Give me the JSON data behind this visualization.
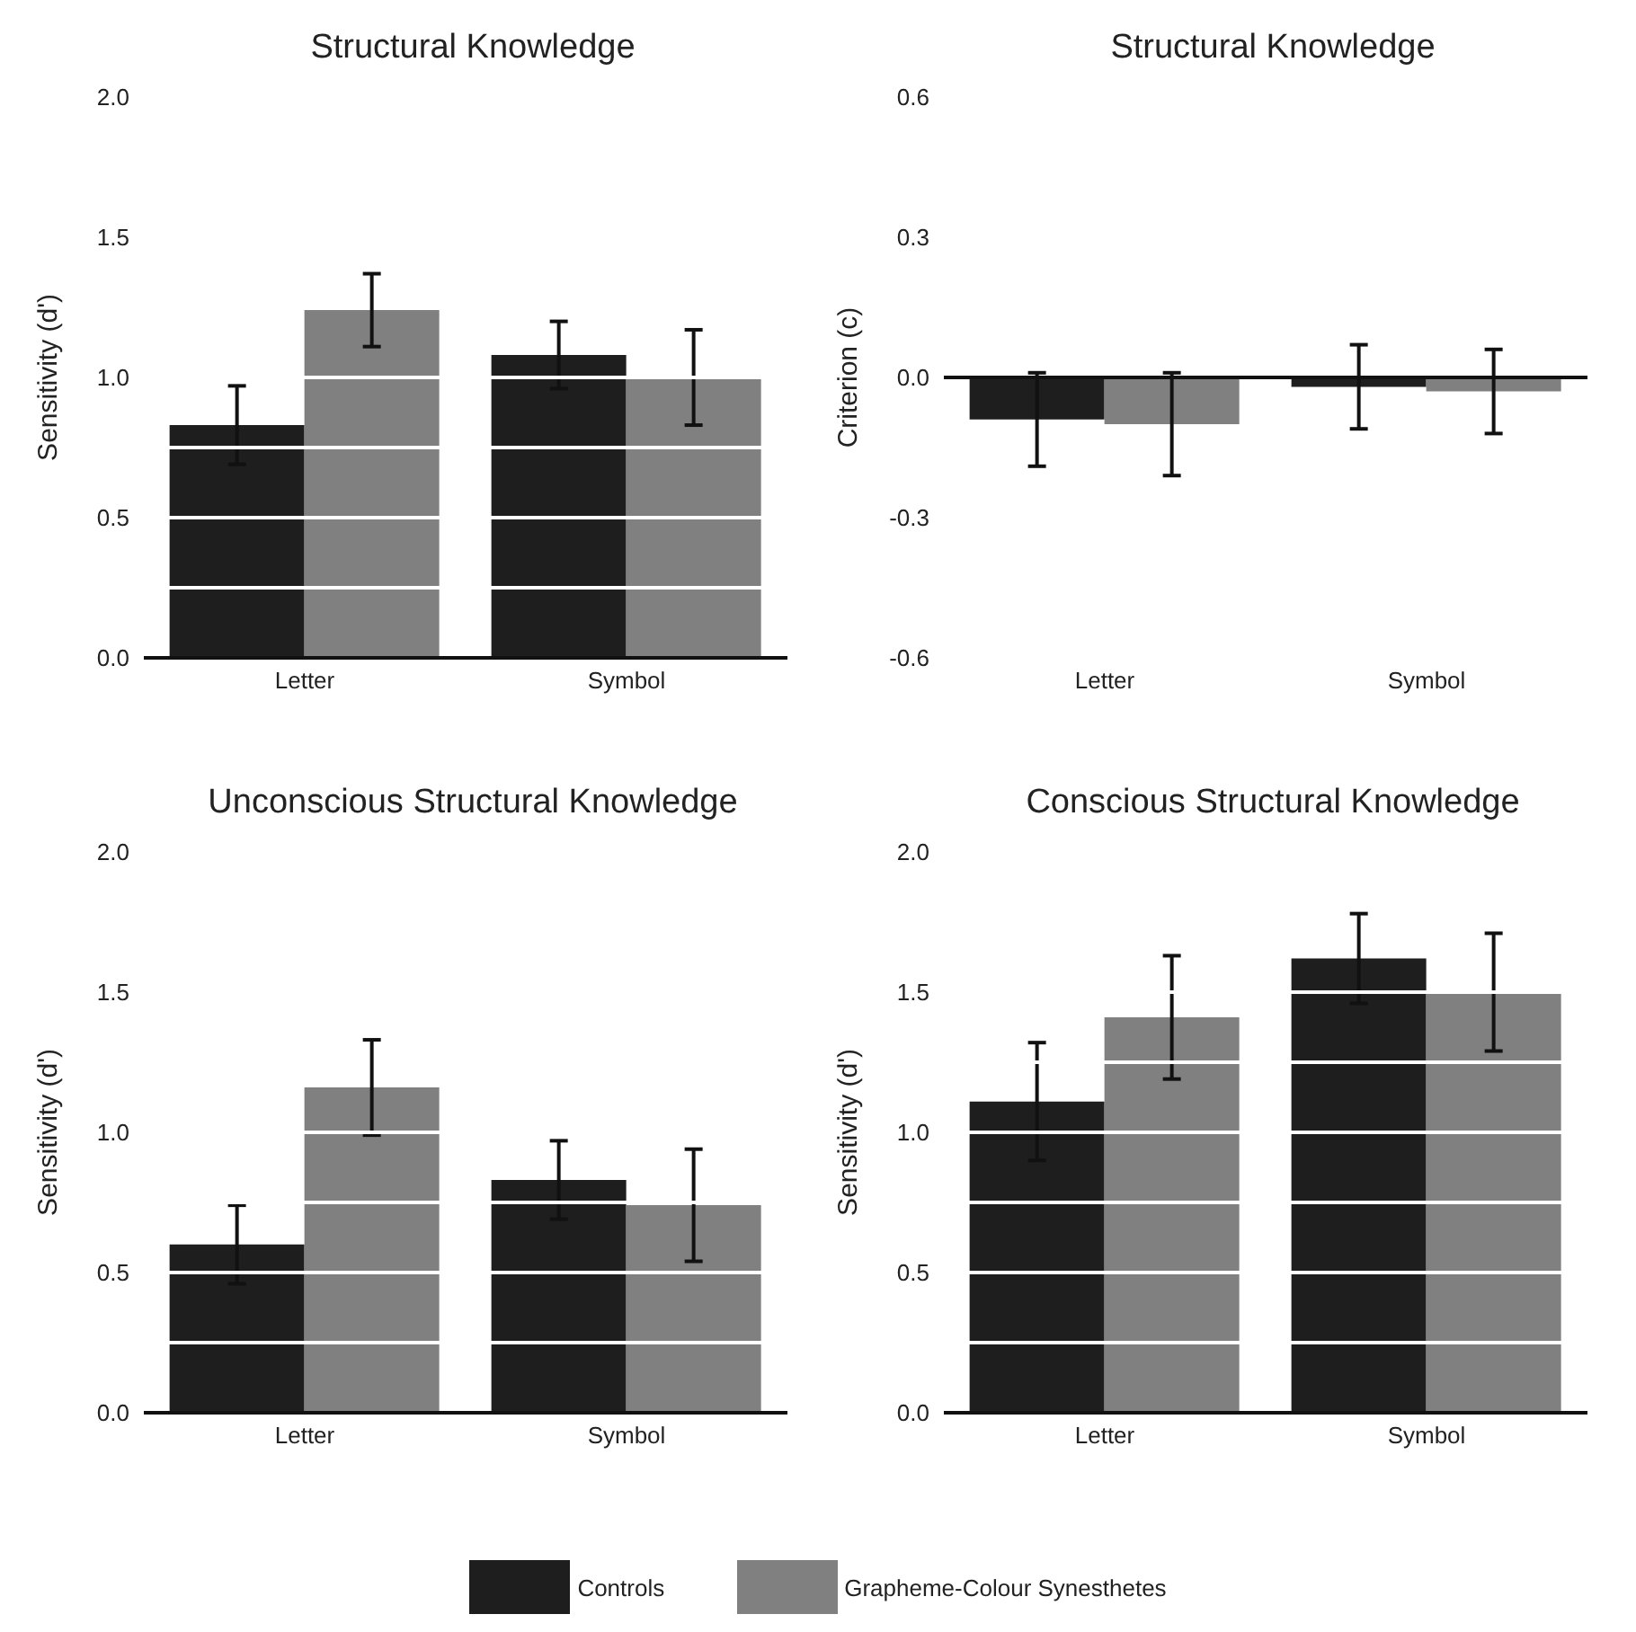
{
  "chart_data": [
    {
      "type": "bar",
      "title": "Structural Knowledge",
      "ylabel": "Sensitivity (d')",
      "categories": [
        "Letter",
        "Symbol"
      ],
      "ylim": [
        0,
        2
      ],
      "yticks": [
        {
          "value": 0,
          "label": "0.0"
        },
        {
          "value": 0.25,
          "label": null
        },
        0.5,
        {
          "value": 0.75,
          "label": null
        },
        {
          "value": 1,
          "label": "1.0"
        },
        1.5,
        {
          "value": 2,
          "label": "2.0"
        }
      ],
      "grid": "y",
      "legend": "bottom",
      "series": [
        {
          "name": "Controls",
          "color": "#1e1e1e",
          "values": [
            0.83,
            1.08
          ],
          "errors": [
            0.14,
            0.12
          ]
        },
        {
          "name": "Grapheme-Colour Synesthetes",
          "color": "#808080",
          "values": [
            1.24,
            1.0
          ],
          "errors": [
            0.13,
            0.17
          ]
        }
      ]
    },
    {
      "type": "bar",
      "title": "Structural Knowledge",
      "ylabel": "Criterion (c)",
      "categories": [
        "Letter",
        "Symbol"
      ],
      "ylim": [
        -0.6,
        0.6
      ],
      "yticks": [
        -0.6,
        -0.3,
        {
          "value": 0,
          "label": "0.0"
        },
        0.3,
        0.6
      ],
      "ref_lines": [
        {
          "axis": "y",
          "value": 0,
          "color": "#111111"
        }
      ],
      "series": [
        {
          "color": "#1e1e1e",
          "values": [
            -0.09,
            -0.02
          ],
          "errors": [
            0.1,
            0.09
          ]
        },
        {
          "color": "#808080",
          "values": [
            -0.1,
            -0.03
          ],
          "errors": [
            0.11,
            0.09
          ]
        }
      ]
    },
    {
      "type": "bar",
      "title": "Unconscious Structural Knowledge",
      "ylabel": "Sensitivity (d')",
      "categories": [
        "Letter",
        "Symbol"
      ],
      "ylim": [
        0,
        2
      ],
      "yticks": [
        {
          "value": 0,
          "label": "0.0"
        },
        {
          "value": 0.25,
          "label": null
        },
        0.5,
        {
          "value": 0.75,
          "label": null
        },
        {
          "value": 1,
          "label": "1.0"
        },
        1.5,
        {
          "value": 2,
          "label": "2.0"
        }
      ],
      "grid": "y",
      "series": [
        {
          "color": "#1e1e1e",
          "values": [
            0.6,
            0.83
          ],
          "errors": [
            0.14,
            0.14
          ]
        },
        {
          "color": "#808080",
          "values": [
            1.16,
            0.74
          ],
          "errors": [
            0.17,
            0.2
          ]
        }
      ]
    },
    {
      "type": "bar",
      "title": "Conscious Structural Knowledge",
      "ylabel": "Sensitivity (d')",
      "categories": [
        "Letter",
        "Symbol"
      ],
      "ylim": [
        0,
        2
      ],
      "yticks": [
        {
          "value": 0,
          "label": "0.0"
        },
        {
          "value": 0.25,
          "label": null
        },
        0.5,
        {
          "value": 0.75,
          "label": null
        },
        {
          "value": 1,
          "label": "1.0"
        },
        {
          "value": 1.25,
          "label": null
        },
        1.5,
        {
          "value": 2,
          "label": "2.0"
        }
      ],
      "grid": "y",
      "series": [
        {
          "color": "#1e1e1e",
          "values": [
            1.11,
            1.62
          ],
          "errors": [
            0.21,
            0.16
          ]
        },
        {
          "color": "#808080",
          "values": [
            1.41,
            1.5
          ],
          "errors": [
            0.22,
            0.21
          ]
        }
      ]
    }
  ]
}
